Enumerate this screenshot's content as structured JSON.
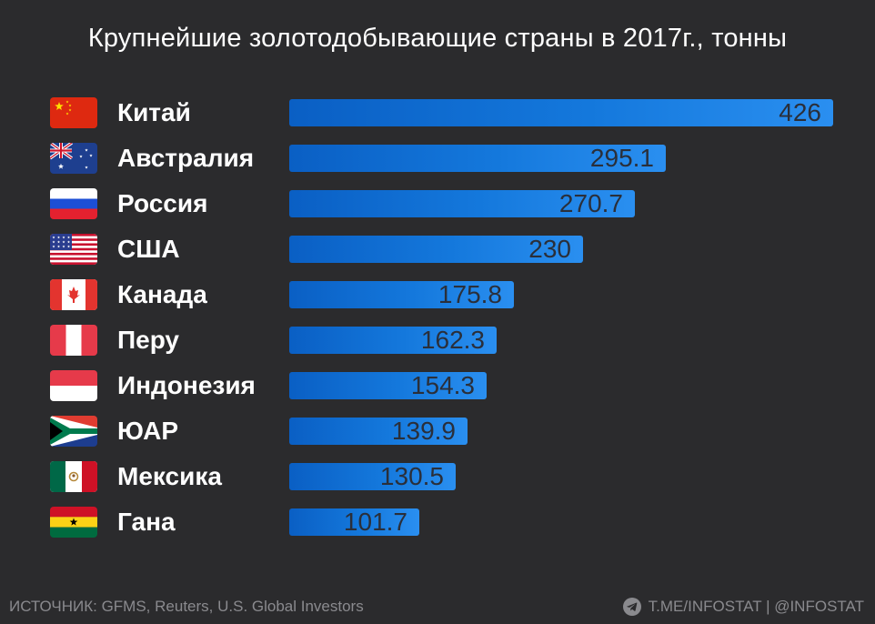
{
  "title": "Крупнейшие золотодобывающие страны в 2017г., тонны",
  "footer": {
    "source": "ИСТОЧНИК: GFMS, Reuters, U.S. Global Investors",
    "credit": "T.ME/INFOSTAT | @INFOSTAT",
    "credit_icon": "telegram-icon"
  },
  "colors": {
    "background": "#2b2b2d",
    "bar": "#1478dc",
    "value_text": "#2a2f3a",
    "footer_text": "#8a8a8e"
  },
  "chart_data": {
    "type": "bar",
    "orientation": "horizontal",
    "title": "Крупнейшие золотодобывающие страны в 2017г., тонны",
    "categories": [
      "Китай",
      "Австралия",
      "Россия",
      "США",
      "Канада",
      "Перу",
      "Индонезия",
      "ЮАР",
      "Мексика",
      "Гана"
    ],
    "values": [
      426,
      295.1,
      270.7,
      230,
      175.8,
      162.3,
      154.3,
      139.9,
      130.5,
      101.7
    ],
    "value_labels": [
      "426",
      "295.1",
      "270.7",
      "230",
      "175.8",
      "162.3",
      "154.3",
      "139.9",
      "130.5",
      "101.7"
    ],
    "flag_icons": [
      "china-flag-icon",
      "australia-flag-icon",
      "russia-flag-icon",
      "usa-flag-icon",
      "canada-flag-icon",
      "peru-flag-icon",
      "indonesia-flag-icon",
      "south-africa-flag-icon",
      "mexico-flag-icon",
      "ghana-flag-icon"
    ],
    "xlim": [
      0,
      426
    ],
    "xlabel": "",
    "ylabel": "",
    "grid": false,
    "legend": "none"
  }
}
